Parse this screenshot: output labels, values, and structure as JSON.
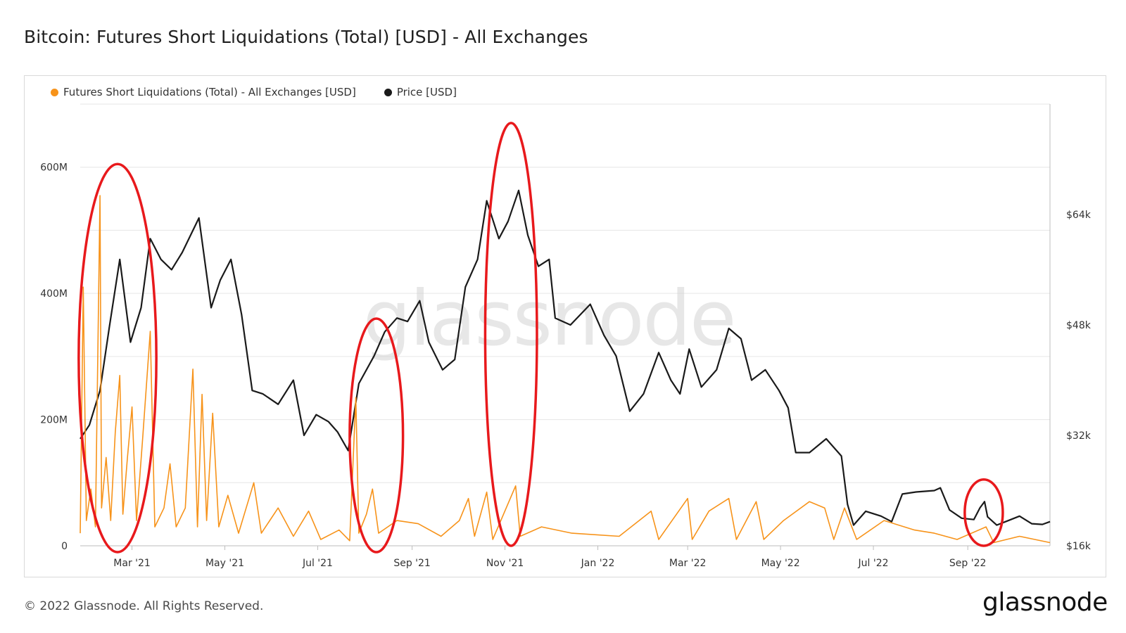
{
  "title": "Bitcoin: Futures Short Liquidations (Total) [USD] - All Exchanges",
  "footer": "© 2022 Glassnode. All Rights Reserved.",
  "brand": "glassnode",
  "watermark": "glassnode",
  "colors": {
    "liquidations": "#f7931a",
    "price": "#1a1a1a",
    "annotation": "#e8191c",
    "grid": "#e6e6e6"
  },
  "legend": {
    "liquidations": "Futures Short Liquidations (Total) - All Exchanges [USD]",
    "price": "Price [USD]"
  },
  "chart_data": {
    "type": "line",
    "title": "Bitcoin: Futures Short Liquidations (Total) [USD] - All Exchanges",
    "x_range": [
      "2021-01-26",
      "2022-10-25"
    ],
    "x_ticks": [
      {
        "label": "Mar '21",
        "date": "2021-03-01"
      },
      {
        "label": "May '21",
        "date": "2021-05-01"
      },
      {
        "label": "Jul '21",
        "date": "2021-07-01"
      },
      {
        "label": "Sep '21",
        "date": "2021-09-01"
      },
      {
        "label": "Nov '21",
        "date": "2021-11-01"
      },
      {
        "label": "Jan '22",
        "date": "2022-01-01"
      },
      {
        "label": "Mar '22",
        "date": "2022-03-01"
      },
      {
        "label": "May '22",
        "date": "2022-05-01"
      },
      {
        "label": "Jul '22",
        "date": "2022-07-01"
      },
      {
        "label": "Sep '22",
        "date": "2022-09-01"
      }
    ],
    "y_left": {
      "ticks": [
        0,
        200000000,
        400000000,
        600000000
      ],
      "tick_labels": [
        "0",
        "200M",
        "400M",
        "600M"
      ],
      "range": [
        0,
        700000000
      ]
    },
    "y_right": {
      "ticks": [
        16000,
        32000,
        48000,
        64000
      ],
      "tick_labels": [
        "$16k",
        "$32k",
        "$48k",
        "$64k"
      ],
      "range": [
        16000,
        80000
      ]
    },
    "grid": true,
    "legend_position": "top-left",
    "series": [
      {
        "name": "Price [USD]",
        "axis": "right",
        "color": "#1a1a1a",
        "points": [
          [
            "2021-01-26",
            31500
          ],
          [
            "2021-02-01",
            33500
          ],
          [
            "2021-02-08",
            38500
          ],
          [
            "2021-02-14",
            47500
          ],
          [
            "2021-02-21",
            57500
          ],
          [
            "2021-02-28",
            45500
          ],
          [
            "2021-03-07",
            50500
          ],
          [
            "2021-03-13",
            60500
          ],
          [
            "2021-03-20",
            57500
          ],
          [
            "2021-03-27",
            56000
          ],
          [
            "2021-04-03",
            58500
          ],
          [
            "2021-04-14",
            63500
          ],
          [
            "2021-04-22",
            50500
          ],
          [
            "2021-04-28",
            54500
          ],
          [
            "2021-05-05",
            57500
          ],
          [
            "2021-05-12",
            49500
          ],
          [
            "2021-05-19",
            38500
          ],
          [
            "2021-05-26",
            38000
          ],
          [
            "2021-06-05",
            36500
          ],
          [
            "2021-06-15",
            40000
          ],
          [
            "2021-06-22",
            32000
          ],
          [
            "2021-06-30",
            35000
          ],
          [
            "2021-07-08",
            34000
          ],
          [
            "2021-07-14",
            32500
          ],
          [
            "2021-07-21",
            29800
          ],
          [
            "2021-07-28",
            39500
          ],
          [
            "2021-08-07",
            43500
          ],
          [
            "2021-08-14",
            47000
          ],
          [
            "2021-08-22",
            49000
          ],
          [
            "2021-08-29",
            48500
          ],
          [
            "2021-09-06",
            51500
          ],
          [
            "2021-09-12",
            45500
          ],
          [
            "2021-09-21",
            41500
          ],
          [
            "2021-09-29",
            43000
          ],
          [
            "2021-10-06",
            53500
          ],
          [
            "2021-10-14",
            57500
          ],
          [
            "2021-10-20",
            66000
          ],
          [
            "2021-10-28",
            60500
          ],
          [
            "2021-11-03",
            63000
          ],
          [
            "2021-11-10",
            67500
          ],
          [
            "2021-11-16",
            61000
          ],
          [
            "2021-11-23",
            56500
          ],
          [
            "2021-11-30",
            57500
          ],
          [
            "2021-12-04",
            49000
          ],
          [
            "2021-12-14",
            48000
          ],
          [
            "2021-12-27",
            51000
          ],
          [
            "2022-01-05",
            46500
          ],
          [
            "2022-01-13",
            43500
          ],
          [
            "2022-01-22",
            35500
          ],
          [
            "2022-01-31",
            38000
          ],
          [
            "2022-02-10",
            44000
          ],
          [
            "2022-02-18",
            40000
          ],
          [
            "2022-02-24",
            38000
          ],
          [
            "2022-03-02",
            44500
          ],
          [
            "2022-03-10",
            39000
          ],
          [
            "2022-03-20",
            41500
          ],
          [
            "2022-03-28",
            47500
          ],
          [
            "2022-04-05",
            46000
          ],
          [
            "2022-04-12",
            40000
          ],
          [
            "2022-04-21",
            41500
          ],
          [
            "2022-04-30",
            38500
          ],
          [
            "2022-05-06",
            36000
          ],
          [
            "2022-05-11",
            29500
          ],
          [
            "2022-05-20",
            29500
          ],
          [
            "2022-05-31",
            31500
          ],
          [
            "2022-06-10",
            29000
          ],
          [
            "2022-06-14",
            22000
          ],
          [
            "2022-06-18",
            19000
          ],
          [
            "2022-06-26",
            21000
          ],
          [
            "2022-07-06",
            20300
          ],
          [
            "2022-07-13",
            19500
          ],
          [
            "2022-07-20",
            23500
          ],
          [
            "2022-07-29",
            23800
          ],
          [
            "2022-08-10",
            24000
          ],
          [
            "2022-08-14",
            24400
          ],
          [
            "2022-08-20",
            21200
          ],
          [
            "2022-08-28",
            20000
          ],
          [
            "2022-09-05",
            19800
          ],
          [
            "2022-09-09",
            21500
          ],
          [
            "2022-09-12",
            22400
          ],
          [
            "2022-09-14",
            20200
          ],
          [
            "2022-09-20",
            19000
          ],
          [
            "2022-09-27",
            19600
          ],
          [
            "2022-10-05",
            20300
          ],
          [
            "2022-10-13",
            19200
          ],
          [
            "2022-10-20",
            19100
          ],
          [
            "2022-10-25",
            19500
          ]
        ]
      },
      {
        "name": "Futures Short Liquidations (Total) - All Exchanges [USD]",
        "axis": "left",
        "color": "#f7931a",
        "points": [
          [
            "2021-01-26",
            20000000
          ],
          [
            "2021-01-28",
            410000000
          ],
          [
            "2021-01-30",
            40000000
          ],
          [
            "2021-02-02",
            90000000
          ],
          [
            "2021-02-05",
            30000000
          ],
          [
            "2021-02-08",
            555000000
          ],
          [
            "2021-02-09",
            60000000
          ],
          [
            "2021-02-12",
            140000000
          ],
          [
            "2021-02-15",
            40000000
          ],
          [
            "2021-02-18",
            180000000
          ],
          [
            "2021-02-21",
            270000000
          ],
          [
            "2021-02-23",
            50000000
          ],
          [
            "2021-02-26",
            140000000
          ],
          [
            "2021-03-01",
            220000000
          ],
          [
            "2021-03-04",
            40000000
          ],
          [
            "2021-03-08",
            170000000
          ],
          [
            "2021-03-13",
            340000000
          ],
          [
            "2021-03-16",
            30000000
          ],
          [
            "2021-03-22",
            60000000
          ],
          [
            "2021-03-26",
            130000000
          ],
          [
            "2021-03-30",
            30000000
          ],
          [
            "2021-04-05",
            60000000
          ],
          [
            "2021-04-10",
            280000000
          ],
          [
            "2021-04-13",
            30000000
          ],
          [
            "2021-04-16",
            240000000
          ],
          [
            "2021-04-19",
            40000000
          ],
          [
            "2021-04-23",
            210000000
          ],
          [
            "2021-04-27",
            30000000
          ],
          [
            "2021-05-03",
            80000000
          ],
          [
            "2021-05-10",
            20000000
          ],
          [
            "2021-05-20",
            100000000
          ],
          [
            "2021-05-25",
            20000000
          ],
          [
            "2021-06-05",
            60000000
          ],
          [
            "2021-06-15",
            15000000
          ],
          [
            "2021-06-25",
            55000000
          ],
          [
            "2021-07-03",
            10000000
          ],
          [
            "2021-07-15",
            25000000
          ],
          [
            "2021-07-22",
            8000000
          ],
          [
            "2021-07-26",
            235000000
          ],
          [
            "2021-07-28",
            20000000
          ],
          [
            "2021-08-02",
            50000000
          ],
          [
            "2021-08-06",
            90000000
          ],
          [
            "2021-08-10",
            20000000
          ],
          [
            "2021-08-22",
            40000000
          ],
          [
            "2021-09-05",
            35000000
          ],
          [
            "2021-09-20",
            15000000
          ],
          [
            "2021-10-02",
            40000000
          ],
          [
            "2021-10-08",
            75000000
          ],
          [
            "2021-10-12",
            15000000
          ],
          [
            "2021-10-20",
            85000000
          ],
          [
            "2021-10-24",
            10000000
          ],
          [
            "2021-11-08",
            95000000
          ],
          [
            "2021-11-11",
            15000000
          ],
          [
            "2021-11-25",
            30000000
          ],
          [
            "2021-12-15",
            20000000
          ],
          [
            "2022-01-15",
            15000000
          ],
          [
            "2022-02-05",
            55000000
          ],
          [
            "2022-02-10",
            10000000
          ],
          [
            "2022-03-01",
            75000000
          ],
          [
            "2022-03-04",
            10000000
          ],
          [
            "2022-03-15",
            55000000
          ],
          [
            "2022-03-28",
            75000000
          ],
          [
            "2022-04-02",
            10000000
          ],
          [
            "2022-04-15",
            70000000
          ],
          [
            "2022-04-20",
            10000000
          ],
          [
            "2022-05-03",
            40000000
          ],
          [
            "2022-05-20",
            70000000
          ],
          [
            "2022-05-30",
            60000000
          ],
          [
            "2022-06-05",
            10000000
          ],
          [
            "2022-06-12",
            60000000
          ],
          [
            "2022-06-20",
            10000000
          ],
          [
            "2022-07-08",
            40000000
          ],
          [
            "2022-07-28",
            25000000
          ],
          [
            "2022-08-10",
            20000000
          ],
          [
            "2022-08-25",
            10000000
          ],
          [
            "2022-09-13",
            30000000
          ],
          [
            "2022-09-18",
            5000000
          ],
          [
            "2022-10-05",
            15000000
          ],
          [
            "2022-10-25",
            5000000
          ]
        ]
      }
    ],
    "annotations": [
      {
        "shape": "ellipse",
        "color": "#e8191c",
        "x_range": [
          "2021-01-25",
          "2021-03-17"
        ],
        "y_left_range": [
          -10000000,
          605000000
        ]
      },
      {
        "shape": "ellipse",
        "color": "#e8191c",
        "x_range": [
          "2021-07-22",
          "2021-08-26"
        ],
        "y_left_range": [
          -10000000,
          360000000
        ]
      },
      {
        "shape": "ellipse",
        "color": "#e8191c",
        "x_range": [
          "2021-10-19",
          "2021-11-22"
        ],
        "y_left_range": [
          0,
          670000000
        ]
      },
      {
        "shape": "ellipse",
        "color": "#e8191c",
        "x_range": [
          "2022-08-30",
          "2022-09-24"
        ],
        "y_left_range": [
          0,
          105000000
        ]
      }
    ]
  }
}
